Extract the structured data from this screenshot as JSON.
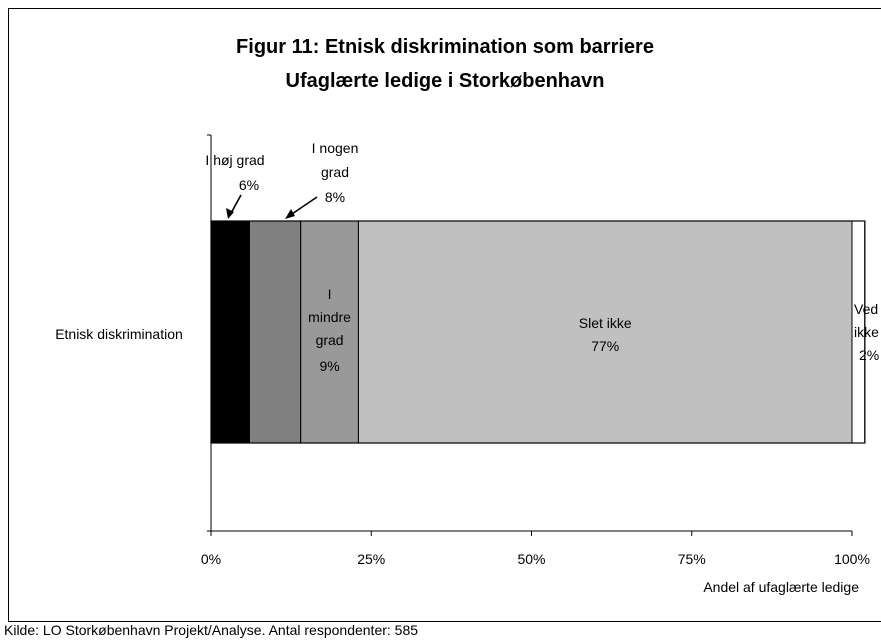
{
  "chart_data": {
    "type": "bar",
    "orientation": "horizontal",
    "stacked": true,
    "title": [
      "Figur 11: Etnisk diskrimination som barriere",
      "Ufaglærte ledige i Storkøbenhavn"
    ],
    "category": "Etnisk diskrimination",
    "xlabel": "Andel af ufaglærte ledige",
    "xlim": [
      0,
      100
    ],
    "x_ticks": [
      "0%",
      "25%",
      "50%",
      "75%",
      "100%"
    ],
    "grid": false,
    "series": [
      {
        "label_lines": [
          "I høj grad",
          "6%"
        ],
        "value": 6,
        "color": "#000000"
      },
      {
        "label_lines": [
          "I nogen",
          "grad",
          "8%"
        ],
        "value": 8,
        "color": "#808080"
      },
      {
        "label_lines": [
          "I",
          "mindre",
          "grad",
          "9%"
        ],
        "value": 9,
        "color": "#999999"
      },
      {
        "label_lines": [
          "Slet ikke",
          "77%"
        ],
        "value": 77,
        "color": "#c0c0c0"
      },
      {
        "label_lines": [
          "Ved",
          "ikke",
          "2%"
        ],
        "value": 2,
        "color": "#ffffff"
      }
    ]
  },
  "source_note": "Kilde: LO Storkøbenhavn Projekt/Analyse. Antal respondenter: 585"
}
